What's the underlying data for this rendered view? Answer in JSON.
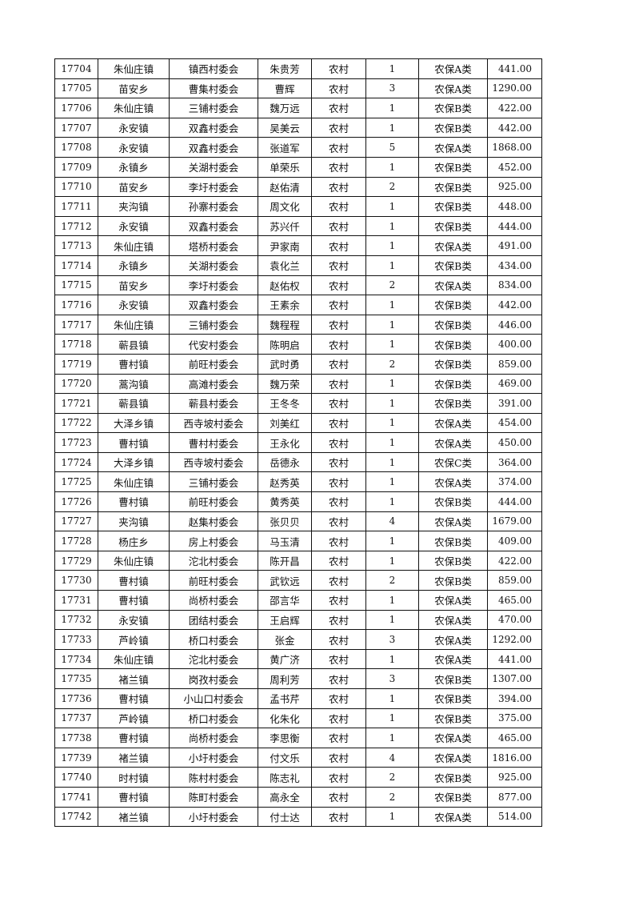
{
  "rows": [
    [
      "17704",
      "朱仙庄镇",
      "镇西村委会",
      "朱贵芳",
      "农村",
      "1",
      "农保A类",
      "441.00"
    ],
    [
      "17705",
      "苗安乡",
      "曹集村委会",
      "曹辉",
      "农村",
      "3",
      "农保A类",
      "1290.00"
    ],
    [
      "17706",
      "朱仙庄镇",
      "三铺村委会",
      "魏万远",
      "农村",
      "1",
      "农保B类",
      "422.00"
    ],
    [
      "17707",
      "永安镇",
      "双鑫村委会",
      "吴美云",
      "农村",
      "1",
      "农保B类",
      "442.00"
    ],
    [
      "17708",
      "永安镇",
      "双鑫村委会",
      "张道军",
      "农村",
      "5",
      "农保A类",
      "1868.00"
    ],
    [
      "17709",
      "永镇乡",
      "关湖村委会",
      "单荣乐",
      "农村",
      "1",
      "农保B类",
      "452.00"
    ],
    [
      "17710",
      "苗安乡",
      "李圩村委会",
      "赵佑清",
      "农村",
      "2",
      "农保B类",
      "925.00"
    ],
    [
      "17711",
      "夹沟镇",
      "孙寨村委会",
      "周文化",
      "农村",
      "1",
      "农保B类",
      "448.00"
    ],
    [
      "17712",
      "永安镇",
      "双鑫村委会",
      "苏兴仟",
      "农村",
      "1",
      "农保B类",
      "444.00"
    ],
    [
      "17713",
      "朱仙庄镇",
      "塔桥村委会",
      "尹家南",
      "农村",
      "1",
      "农保A类",
      "491.00"
    ],
    [
      "17714",
      "永镇乡",
      "关湖村委会",
      "袁化兰",
      "农村",
      "1",
      "农保B类",
      "434.00"
    ],
    [
      "17715",
      "苗安乡",
      "李圩村委会",
      "赵佑权",
      "农村",
      "2",
      "农保A类",
      "834.00"
    ],
    [
      "17716",
      "永安镇",
      "双鑫村委会",
      "王素余",
      "农村",
      "1",
      "农保B类",
      "442.00"
    ],
    [
      "17717",
      "朱仙庄镇",
      "三铺村委会",
      "魏程程",
      "农村",
      "1",
      "农保B类",
      "446.00"
    ],
    [
      "17718",
      "蕲县镇",
      "代安村委会",
      "陈明启",
      "农村",
      "1",
      "农保B类",
      "400.00"
    ],
    [
      "17719",
      "曹村镇",
      "前旺村委会",
      "武时勇",
      "农村",
      "2",
      "农保B类",
      "859.00"
    ],
    [
      "17720",
      "蒿沟镇",
      "高滩村委会",
      "魏万荣",
      "农村",
      "1",
      "农保B类",
      "469.00"
    ],
    [
      "17721",
      "蕲县镇",
      "蕲县村委会",
      "王冬冬",
      "农村",
      "1",
      "农保B类",
      "391.00"
    ],
    [
      "17722",
      "大泽乡镇",
      "西寺坡村委会",
      "刘美红",
      "农村",
      "1",
      "农保A类",
      "454.00"
    ],
    [
      "17723",
      "曹村镇",
      "曹村村委会",
      "王永化",
      "农村",
      "1",
      "农保A类",
      "450.00"
    ],
    [
      "17724",
      "大泽乡镇",
      "西寺坡村委会",
      "岳德永",
      "农村",
      "1",
      "农保C类",
      "364.00"
    ],
    [
      "17725",
      "朱仙庄镇",
      "三铺村委会",
      "赵秀英",
      "农村",
      "1",
      "农保A类",
      "374.00"
    ],
    [
      "17726",
      "曹村镇",
      "前旺村委会",
      "黄秀英",
      "农村",
      "1",
      "农保B类",
      "444.00"
    ],
    [
      "17727",
      "夹沟镇",
      "赵集村委会",
      "张贝贝",
      "农村",
      "4",
      "农保A类",
      "1679.00"
    ],
    [
      "17728",
      "杨庄乡",
      "房上村委会",
      "马玉清",
      "农村",
      "1",
      "农保B类",
      "409.00"
    ],
    [
      "17729",
      "朱仙庄镇",
      "沱北村委会",
      "陈开昌",
      "农村",
      "1",
      "农保B类",
      "422.00"
    ],
    [
      "17730",
      "曹村镇",
      "前旺村委会",
      "武钦远",
      "农村",
      "2",
      "农保B类",
      "859.00"
    ],
    [
      "17731",
      "曹村镇",
      "尚桥村委会",
      "邵言华",
      "农村",
      "1",
      "农保A类",
      "465.00"
    ],
    [
      "17732",
      "永安镇",
      "团结村委会",
      "王启辉",
      "农村",
      "1",
      "农保A类",
      "470.00"
    ],
    [
      "17733",
      "芦岭镇",
      "桥口村委会",
      "张金",
      "农村",
      "3",
      "农保A类",
      "1292.00"
    ],
    [
      "17734",
      "朱仙庄镇",
      "沱北村委会",
      "黄广济",
      "农村",
      "1",
      "农保A类",
      "441.00"
    ],
    [
      "17735",
      "褚兰镇",
      "岗孜村委会",
      "周利芳",
      "农村",
      "3",
      "农保B类",
      "1307.00"
    ],
    [
      "17736",
      "曹村镇",
      "小山口村委会",
      "孟书芹",
      "农村",
      "1",
      "农保B类",
      "394.00"
    ],
    [
      "17737",
      "芦岭镇",
      "桥口村委会",
      "化朱化",
      "农村",
      "1",
      "农保B类",
      "375.00"
    ],
    [
      "17738",
      "曹村镇",
      "尚桥村委会",
      "李思衡",
      "农村",
      "1",
      "农保A类",
      "465.00"
    ],
    [
      "17739",
      "褚兰镇",
      "小圩村委会",
      "付文乐",
      "农村",
      "4",
      "农保A类",
      "1816.00"
    ],
    [
      "17740",
      "时村镇",
      "陈村村委会",
      "陈志礼",
      "农村",
      "2",
      "农保B类",
      "925.00"
    ],
    [
      "17741",
      "曹村镇",
      "陈町村委会",
      "高永全",
      "农村",
      "2",
      "农保B类",
      "877.00"
    ],
    [
      "17742",
      "褚兰镇",
      "小圩村委会",
      "付士达",
      "农村",
      "1",
      "农保A类",
      "514.00"
    ]
  ]
}
